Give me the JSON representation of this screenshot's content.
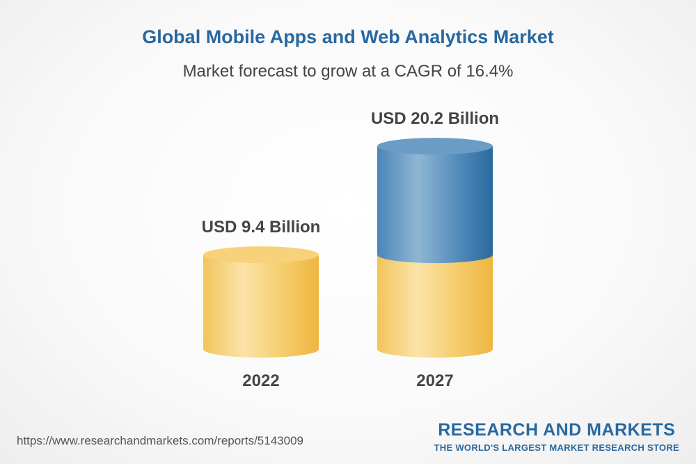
{
  "header": {
    "title": "Global Mobile Apps and Web Analytics Market",
    "subtitle": "Market forecast to grow at a CAGR of 16.4%"
  },
  "chart_data": {
    "type": "bar",
    "categories": [
      "2022",
      "2027"
    ],
    "values": [
      9.4,
      20.2
    ],
    "value_labels": [
      "USD 9.4 Billion",
      "USD 20.2 Billion"
    ],
    "title": "Global Mobile Apps and Web Analytics Market",
    "subtitle": "Market forecast to grow at a CAGR of 16.4%",
    "unit": "USD Billion",
    "grid": false,
    "legend": "none",
    "colors": {
      "base": "#f5c24a",
      "growth": "#3c7cb0",
      "title": "#2868a0",
      "label": "#444444"
    }
  },
  "footer": {
    "url": "https://www.researchandmarkets.com/reports/5143009",
    "logo_name": "RESEARCH AND MARKETS",
    "logo_tagline": "THE WORLD'S LARGEST MARKET RESEARCH STORE"
  }
}
